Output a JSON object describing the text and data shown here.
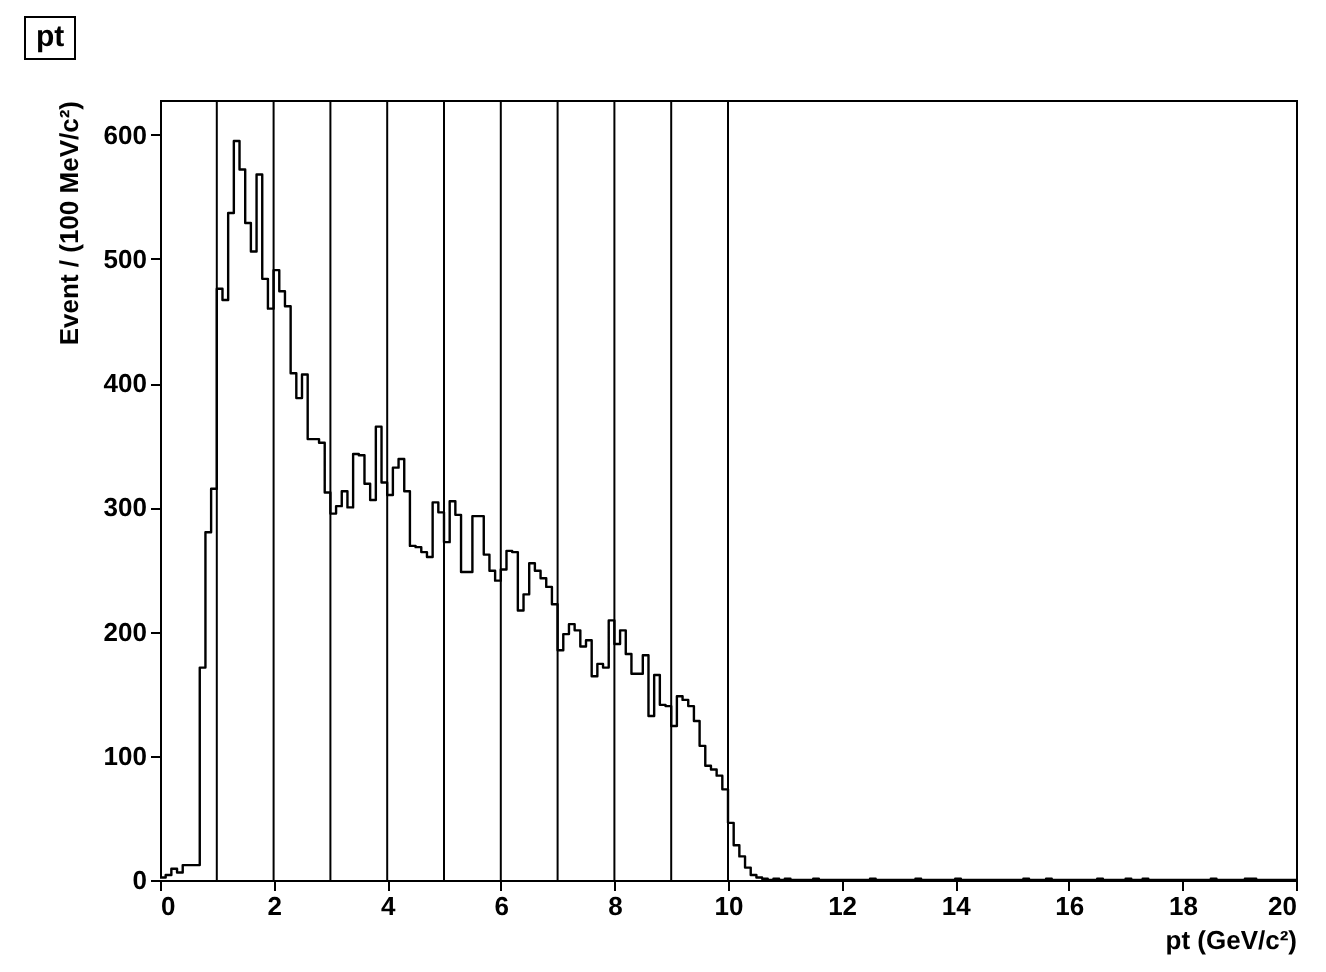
{
  "chart_data": {
    "type": "histogram",
    "title": "pt",
    "xlabel": "pt (GeV/c²)",
    "ylabel": "Event / (100 MeV/c²)",
    "color": "#000000",
    "bins": [
      0,
      0.1,
      0.2,
      0.3,
      0.4,
      0.5,
      0.6,
      0.7,
      0.8,
      0.9,
      1,
      1.1,
      1.2,
      1.3,
      1.4,
      1.5,
      1.6,
      1.7,
      1.8,
      1.9,
      2,
      2.1,
      2.2,
      2.3,
      2.4,
      2.5,
      2.6,
      2.7,
      2.8,
      2.9,
      3,
      3.1,
      3.2,
      3.3,
      3.4,
      3.5,
      3.6,
      3.7,
      3.8,
      3.9,
      4,
      4.1,
      4.2,
      4.3,
      4.4,
      4.5,
      4.6,
      4.7,
      4.8,
      4.9,
      5,
      5.1,
      5.2,
      5.3,
      5.4,
      5.5,
      5.6,
      5.7,
      5.8,
      5.9,
      6,
      6.1,
      6.2,
      6.3,
      6.4,
      6.5,
      6.6,
      6.7,
      6.8,
      6.9,
      7,
      7.1,
      7.2,
      7.3,
      7.4,
      7.5,
      7.6,
      7.7,
      7.8,
      7.9,
      8,
      8.1,
      8.2,
      8.3,
      8.4,
      8.5,
      8.6,
      8.7,
      8.8,
      8.9,
      9,
      9.1,
      9.2,
      9.3,
      9.4,
      9.5,
      9.6,
      9.7,
      9.8,
      9.9,
      10,
      10.1,
      10.2,
      10.3,
      10.4,
      10.5,
      10.6,
      10.7,
      10.8,
      10.9,
      11,
      11.1,
      11.2,
      11.3,
      11.4,
      11.5,
      11.6,
      11.7,
      11.8,
      11.9,
      12,
      12.1,
      12.2,
      12.3,
      12.4,
      12.5,
      12.6,
      12.7,
      12.8,
      12.9,
      13,
      13.1,
      13.2,
      13.3,
      13.4,
      13.5,
      13.6,
      13.7,
      13.8,
      13.9,
      14,
      14.1,
      14.2,
      14.3,
      14.4,
      14.5,
      14.6,
      14.7,
      14.8,
      14.9,
      15,
      15.1,
      15.2,
      15.3,
      15.4,
      15.5,
      15.6,
      15.7,
      15.8,
      15.9,
      16,
      16.1,
      16.2,
      16.3,
      16.4,
      16.5,
      16.6,
      16.7,
      16.8,
      16.9,
      17,
      17.1,
      17.2,
      17.3,
      17.4,
      17.5,
      17.6,
      17.7,
      17.8,
      17.9,
      18,
      18.1,
      18.2,
      18.3,
      18.4,
      18.5,
      18.6,
      18.7,
      18.8,
      18.9,
      19,
      19.1,
      19.2,
      19.3,
      19.4,
      19.5,
      19.6,
      19.7,
      19.8,
      19.9,
      20
    ],
    "values": [
      2,
      4,
      9,
      6,
      12,
      12,
      12,
      171,
      280,
      315,
      476,
      467,
      537,
      595,
      572,
      529,
      506,
      568,
      484,
      460,
      491,
      474,
      462,
      408,
      388,
      407,
      355,
      355,
      352,
      312,
      295,
      301,
      313,
      300,
      343,
      342,
      319,
      306,
      365,
      320,
      310,
      332,
      339,
      313,
      269,
      268,
      264,
      260,
      304,
      296,
      272,
      305,
      294,
      248,
      248,
      293,
      293,
      262,
      249,
      241,
      250,
      265,
      264,
      217,
      230,
      255,
      249,
      243,
      236,
      222,
      185,
      198,
      206,
      201,
      188,
      193,
      164,
      174,
      171,
      209,
      190,
      201,
      182,
      166,
      166,
      181,
      132,
      165,
      141,
      140,
      124,
      148,
      145,
      140,
      128,
      108,
      92,
      89,
      84,
      73,
      46,
      28,
      19,
      10,
      4,
      2,
      1,
      0,
      1,
      0,
      1,
      0,
      0,
      0,
      0,
      1,
      0,
      0,
      0,
      0,
      0,
      0,
      0,
      0,
      0,
      1,
      0,
      0,
      0,
      0,
      0,
      0,
      0,
      1,
      0,
      0,
      0,
      0,
      0,
      0,
      1,
      0,
      0,
      0,
      0,
      0,
      0,
      0,
      0,
      0,
      0,
      0,
      1,
      0,
      0,
      0,
      1,
      0,
      0,
      0,
      0,
      0,
      0,
      0,
      0,
      1,
      0,
      0,
      0,
      0,
      1,
      0,
      0,
      1,
      0,
      0,
      0,
      0,
      0,
      0,
      0,
      0,
      0,
      0,
      0,
      1,
      0,
      0,
      0,
      0,
      0,
      1,
      1,
      0,
      0,
      0,
      0,
      0,
      0,
      0
    ],
    "xlim": [
      0,
      20
    ],
    "xticks": [
      0,
      2,
      4,
      6,
      8,
      10,
      12,
      14,
      16,
      18,
      20
    ],
    "ylim": [
      0,
      628
    ],
    "yticks": [
      0,
      100,
      200,
      300,
      400,
      500,
      600
    ],
    "grid": false,
    "ref_lines": [
      {
        "axis": "x",
        "value": 1,
        "color": "#000000"
      },
      {
        "axis": "x",
        "value": 2,
        "color": "#000000"
      },
      {
        "axis": "x",
        "value": 3,
        "color": "#000000"
      },
      {
        "axis": "x",
        "value": 4,
        "color": "#000000"
      },
      {
        "axis": "x",
        "value": 5,
        "color": "#000000"
      },
      {
        "axis": "x",
        "value": 6,
        "color": "#000000"
      },
      {
        "axis": "x",
        "value": 7,
        "color": "#000000"
      },
      {
        "axis": "x",
        "value": 8,
        "color": "#000000"
      },
      {
        "axis": "x",
        "value": 9,
        "color": "#000000"
      },
      {
        "axis": "x",
        "value": 10,
        "color": "#000000"
      }
    ]
  }
}
